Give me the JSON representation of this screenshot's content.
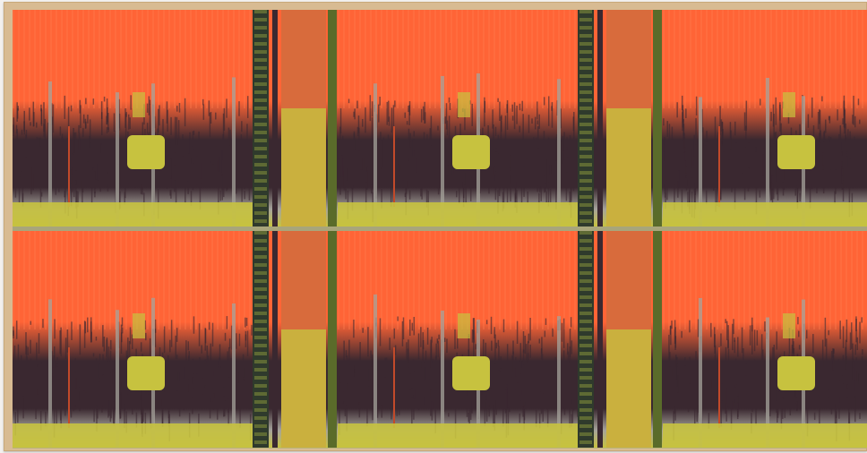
{
  "artwork": {
    "subject": "",
    "colors": {
      "frame": "#d8bb92",
      "orange": "#ff6436",
      "dark": "#3a2830",
      "yellow": "#c7c23f",
      "grey": "#a6a39b"
    },
    "rows": 2,
    "repeats_per_row": 3
  }
}
